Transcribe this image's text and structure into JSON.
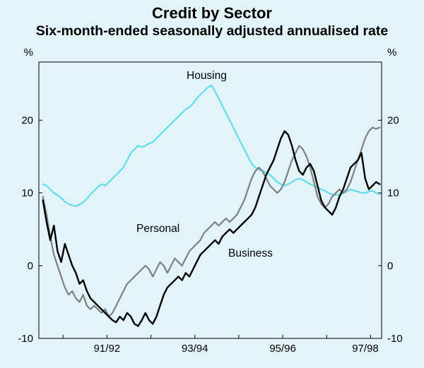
{
  "title": "Credit by Sector",
  "subtitle": "Six-month-ended seasonally adjusted annualised rate",
  "axis": {
    "y_unit_left": "%",
    "y_unit_right": "%",
    "yticks": [
      -10,
      0,
      10,
      20
    ],
    "xticklabels": [
      {
        "label": "91/92",
        "year": 1992
      },
      {
        "label": "93/94",
        "year": 1994
      },
      {
        "label": "95/96",
        "year": 1996
      },
      {
        "label": "97/98",
        "year": 1998
      }
    ]
  },
  "chart_data": {
    "type": "line",
    "title": "Credit by Sector",
    "subtitle": "Six-month-ended seasonally adjusted annualised rate",
    "ylabel": "%",
    "ylim": [
      -10,
      28
    ],
    "xlim": [
      1990.45,
      1998.25
    ],
    "x_start_year": 1990.542,
    "x_step_years": 0.0833333,
    "frequency": "monthly",
    "grid": false,
    "background": "#e3f4f9",
    "series": [
      {
        "name": "Housing",
        "color": "#5fdde9",
        "width": 2.2,
        "values": [
          11.2,
          11.0,
          10.5,
          10.0,
          9.7,
          9.3,
          8.8,
          8.5,
          8.3,
          8.2,
          8.4,
          8.7,
          9.2,
          9.8,
          10.3,
          10.8,
          11.2,
          11.0,
          11.5,
          12.0,
          12.5,
          13.0,
          13.5,
          14.5,
          15.5,
          16.0,
          16.5,
          16.3,
          16.5,
          16.8,
          17.0,
          17.5,
          18.0,
          18.5,
          19.0,
          19.5,
          20.0,
          20.5,
          21.0,
          21.5,
          21.8,
          22.3,
          23.0,
          23.5,
          24.0,
          24.5,
          24.8,
          24.0,
          23.0,
          22.0,
          21.0,
          20.0,
          19.0,
          18.0,
          17.0,
          16.0,
          15.0,
          14.0,
          13.5,
          13.2,
          13.0,
          12.8,
          12.5,
          12.0,
          11.5,
          11.2,
          11.0,
          11.2,
          11.5,
          11.8,
          12.0,
          11.8,
          11.5,
          11.2,
          11.0,
          10.8,
          10.5,
          10.3,
          10.0,
          9.8,
          9.7,
          9.8,
          10.0,
          10.2,
          10.5,
          10.3,
          10.2,
          10.0,
          10.0,
          10.2,
          10.3,
          10.0,
          9.8
        ]
      },
      {
        "name": "Personal",
        "color": "#7f7f7f",
        "width": 2.2,
        "values": [
          9.5,
          7.0,
          4.0,
          1.5,
          0.0,
          -1.5,
          -3.0,
          -4.0,
          -3.5,
          -4.5,
          -5.0,
          -4.0,
          -5.5,
          -6.0,
          -5.5,
          -6.0,
          -6.5,
          -6.0,
          -7.0,
          -6.5,
          -5.5,
          -4.5,
          -3.5,
          -2.5,
          -2.0,
          -1.5,
          -1.0,
          -0.5,
          0.0,
          -0.5,
          -1.5,
          -0.5,
          0.5,
          0.0,
          -1.0,
          0.0,
          1.0,
          0.5,
          0.0,
          1.0,
          2.0,
          2.5,
          3.0,
          3.5,
          4.5,
          5.0,
          5.5,
          6.0,
          5.5,
          6.0,
          6.5,
          6.0,
          6.5,
          7.0,
          8.0,
          9.0,
          10.5,
          12.0,
          13.0,
          13.5,
          13.0,
          12.0,
          11.0,
          10.5,
          10.0,
          10.5,
          11.5,
          13.0,
          14.5,
          15.5,
          16.5,
          16.0,
          15.0,
          13.5,
          11.5,
          9.5,
          8.5,
          8.0,
          8.5,
          9.5,
          10.0,
          10.5,
          10.0,
          10.5,
          11.5,
          13.0,
          14.5,
          16.0,
          17.5,
          18.5,
          19.0,
          18.8,
          19.0
        ]
      },
      {
        "name": "Business",
        "color": "#000000",
        "width": 2.4,
        "values": [
          9.0,
          6.0,
          3.5,
          5.5,
          2.0,
          0.5,
          3.0,
          1.5,
          0.0,
          -1.0,
          -2.5,
          -2.0,
          -3.5,
          -4.5,
          -5.0,
          -5.5,
          -6.0,
          -6.5,
          -7.0,
          -7.5,
          -7.8,
          -7.0,
          -7.5,
          -6.5,
          -7.0,
          -8.0,
          -8.3,
          -7.5,
          -6.5,
          -7.5,
          -8.0,
          -7.0,
          -5.5,
          -4.0,
          -3.0,
          -2.5,
          -2.0,
          -1.5,
          -2.0,
          -1.0,
          -1.5,
          -0.5,
          0.5,
          1.5,
          2.0,
          2.5,
          3.0,
          3.5,
          3.0,
          4.0,
          4.5,
          5.0,
          4.5,
          5.0,
          5.5,
          6.0,
          6.5,
          7.0,
          8.0,
          9.5,
          11.0,
          12.5,
          13.5,
          14.5,
          16.0,
          17.5,
          18.5,
          18.0,
          16.5,
          14.5,
          13.0,
          12.5,
          13.5,
          14.0,
          13.0,
          11.0,
          9.0,
          8.0,
          7.5,
          7.0,
          8.0,
          9.5,
          10.5,
          12.0,
          13.5,
          14.0,
          14.5,
          15.5,
          12.0,
          10.5,
          11.0,
          11.5,
          11.2
        ]
      }
    ]
  }
}
